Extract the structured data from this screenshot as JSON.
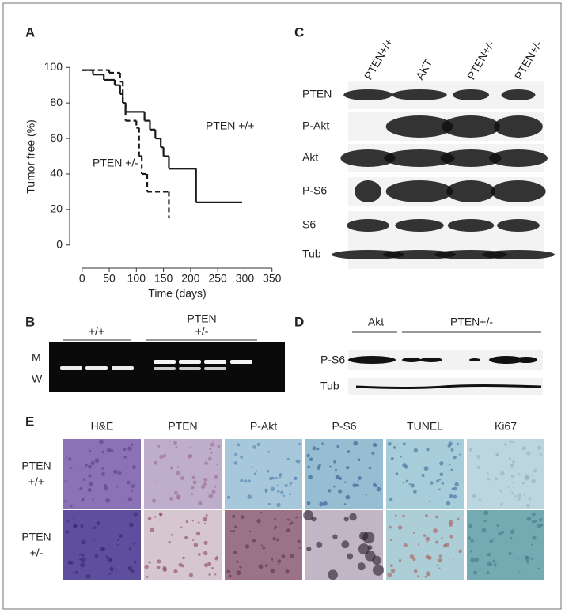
{
  "chart_data": {
    "type": "step",
    "panel_label": "A",
    "y_label": "Tumor free (%)",
    "x_label": "Time (days)",
    "xlim": [
      -23,
      365
    ],
    "ylim": [
      -13,
      105
    ],
    "xticks": [
      0,
      50,
      100,
      150,
      200,
      250,
      300,
      350
    ],
    "yticks": [
      0,
      20,
      40,
      60,
      80,
      100
    ],
    "series": [
      {
        "name": "PTEN +/+",
        "color": "#1a1a1a",
        "style": "solid",
        "x": [
          0,
          20,
          40,
          60,
          70,
          75,
          80,
          115,
          125,
          135,
          145,
          150,
          160,
          210,
          295
        ],
        "values": [
          98.5,
          96,
          93,
          90,
          85,
          80,
          75,
          70,
          65,
          60,
          55,
          50,
          43,
          24,
          24
        ]
      },
      {
        "name": "PTEN +/-",
        "color": "#1a1a1a",
        "style": "dashed",
        "x": [
          0,
          50,
          70,
          75,
          80,
          100,
          105,
          110,
          120,
          160
        ],
        "values": [
          98.5,
          97,
          92,
          80,
          70,
          66,
          50,
          40,
          30,
          15
        ]
      }
    ]
  },
  "panel_b": {
    "label": "B",
    "title": "PTEN",
    "groups": [
      "+/+",
      "+/-"
    ],
    "rows": [
      "M",
      "W"
    ]
  },
  "panel_c": {
    "label": "C",
    "columns": [
      "PTEN+/+",
      "AKT",
      "PTEN+/-",
      "PTEN+/-"
    ],
    "rows": [
      "PTEN",
      "P-Akt",
      "Akt",
      "P-S6",
      "S6",
      "Tub"
    ]
  },
  "panel_d": {
    "label": "D",
    "groups": [
      "Akt",
      "PTEN+/-"
    ],
    "rows": [
      "P-S6",
      "Tub"
    ]
  },
  "panel_e": {
    "label": "E",
    "columns": [
      "H&E",
      "PTEN",
      "P-Akt",
      "P-S6",
      "TUNEL",
      "Ki67"
    ],
    "rows": [
      [
        "PTEN",
        "+/+"
      ],
      [
        "PTEN",
        "+/-"
      ]
    ]
  }
}
